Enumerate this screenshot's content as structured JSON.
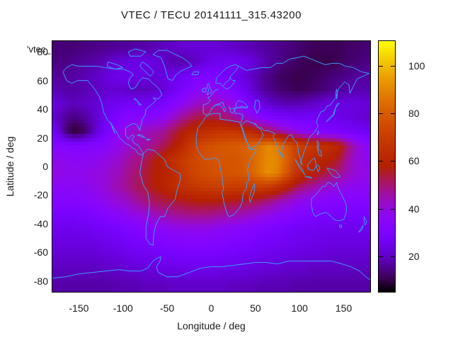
{
  "title": "VTEC / TECU 20141111_315.43200",
  "key_label": "'vtec_",
  "axes": {
    "x_label": "Longitude / deg",
    "y_label": "Latitude / deg",
    "x_ticks": [
      -150,
      -100,
      -50,
      0,
      50,
      100,
      150
    ],
    "y_ticks": [
      80,
      60,
      40,
      20,
      0,
      -20,
      -40,
      -60,
      -80
    ]
  },
  "colorbar": {
    "ticks": [
      20,
      40,
      60,
      80,
      100
    ],
    "min": 5,
    "max": 110.5,
    "palette": "gnuplot traditional pm3d (rgbformulae 7,5,15: black-violet-red-yellow)"
  },
  "colors": {
    "background": "#ffffff",
    "text": "#1a1a1a",
    "coastline": "#3c9eff",
    "border": "#000000"
  },
  "chart_data": {
    "type": "heatmap",
    "title": "VTEC / TECU 20141111_315.43200",
    "xlabel": "Longitude / deg",
    "ylabel": "Latitude / deg",
    "value_units": "TECU",
    "xlim": [
      -180,
      180
    ],
    "ylim": [
      -87.5,
      87.5
    ],
    "colorbar_range": [
      5,
      110.5
    ],
    "colorbar_ticks": [
      20,
      40,
      60,
      80,
      100
    ],
    "overlay": "world-coastlines",
    "coastline_color": "#3c9eff",
    "grid_on": false,
    "lon_centers": [
      -175,
      -165,
      -155,
      -145,
      -135,
      -125,
      -115,
      -105,
      -95,
      -85,
      -75,
      -65,
      -55,
      -45,
      -35,
      -25,
      -15,
      -5,
      5,
      15,
      25,
      35,
      45,
      55,
      65,
      75,
      85,
      95,
      105,
      115,
      125,
      135,
      145,
      155,
      165,
      175
    ],
    "lat_centers": [
      85,
      75,
      65,
      55,
      45,
      35,
      25,
      15,
      5,
      -5,
      -15,
      -25,
      -35,
      -45,
      -55,
      -65,
      -75,
      -85
    ],
    "values": [
      [
        13,
        13,
        13,
        14,
        14,
        15,
        15,
        16,
        16,
        17,
        17,
        18,
        19,
        20,
        21,
        22,
        22,
        22,
        22,
        21,
        20,
        19,
        18,
        17,
        16,
        15,
        14,
        13,
        12,
        11,
        11,
        11,
        11,
        12,
        12,
        13
      ],
      [
        14,
        14,
        15,
        16,
        17,
        18,
        20,
        22,
        23,
        24,
        24,
        23,
        21,
        18,
        17,
        18,
        20,
        23,
        25,
        26,
        26,
        25,
        23,
        20,
        17,
        15,
        13,
        12,
        11,
        10,
        10,
        10,
        11,
        12,
        13,
        14
      ],
      [
        16,
        16,
        17,
        18,
        19,
        21,
        23,
        25,
        25,
        24,
        23,
        22,
        23,
        24,
        26,
        28,
        30,
        31,
        30,
        28,
        26,
        23,
        20,
        17,
        14,
        12,
        11,
        10,
        10,
        11,
        12,
        13,
        14,
        15,
        16,
        16
      ],
      [
        18,
        17,
        17,
        18,
        19,
        20,
        21,
        21,
        20,
        19,
        19,
        20,
        22,
        25,
        29,
        33,
        36,
        37,
        36,
        34,
        31,
        27,
        22,
        18,
        15,
        13,
        12,
        11,
        11,
        12,
        13,
        15,
        16,
        17,
        18,
        18
      ],
      [
        22,
        20,
        19,
        20,
        21,
        23,
        25,
        26,
        27,
        27,
        26,
        27,
        29,
        32,
        36,
        40,
        43,
        44,
        44,
        42,
        39,
        34,
        29,
        25,
        21,
        19,
        18,
        18,
        19,
        20,
        22,
        23,
        23,
        23,
        23,
        22
      ],
      [
        20,
        16,
        14,
        16,
        19,
        23,
        27,
        31,
        33,
        34,
        34,
        35,
        37,
        41,
        46,
        50,
        53,
        54,
        53,
        51,
        47,
        43,
        38,
        34,
        31,
        29,
        28,
        27,
        27,
        27,
        26,
        25,
        24,
        23,
        22,
        21
      ],
      [
        25,
        13,
        8,
        11,
        17,
        25,
        31,
        37,
        41,
        43,
        44,
        45,
        47,
        51,
        56,
        60,
        62,
        64,
        66,
        67,
        67,
        65,
        61,
        57,
        52,
        47,
        43,
        39,
        36,
        33,
        31,
        30,
        29,
        28,
        27,
        26
      ],
      [
        34,
        33,
        32,
        32,
        33,
        34,
        36,
        38,
        42,
        44,
        46,
        48,
        52,
        56,
        61,
        68,
        73,
        76,
        78,
        79,
        80,
        81,
        83,
        86,
        91,
        88,
        79,
        73,
        70,
        68,
        66,
        64,
        60,
        50,
        42,
        36
      ],
      [
        38,
        37,
        36,
        36,
        37,
        38,
        40,
        42,
        46,
        48,
        52,
        56,
        60,
        64,
        68,
        72,
        75,
        77,
        78,
        78,
        78,
        79,
        82,
        87,
        91,
        90,
        82,
        71,
        66,
        63,
        60,
        58,
        54,
        46,
        40,
        38
      ],
      [
        39,
        38,
        38,
        38,
        39,
        40,
        42,
        44,
        48,
        50,
        54,
        57,
        59,
        62,
        67,
        71,
        74,
        76,
        77,
        77,
        78,
        79,
        82,
        87,
        92,
        89,
        79,
        68,
        62,
        58,
        55,
        52,
        48,
        44,
        40,
        39
      ],
      [
        36,
        36,
        36,
        37,
        38,
        40,
        42,
        45,
        48,
        51,
        54,
        57,
        60,
        63,
        65,
        67,
        69,
        70,
        71,
        71,
        70,
        70,
        70,
        71,
        69,
        65,
        59,
        53,
        49,
        46,
        43,
        41,
        39,
        38,
        37,
        36
      ],
      [
        33,
        33,
        33,
        34,
        35,
        37,
        39,
        41,
        43,
        46,
        49,
        51,
        53,
        54,
        55,
        56,
        57,
        57,
        57,
        56,
        55,
        54,
        53,
        51,
        48,
        45,
        42,
        39,
        37,
        35,
        34,
        33,
        33,
        33,
        33,
        33
      ],
      [
        28,
        28,
        28,
        29,
        30,
        31,
        33,
        35,
        37,
        39,
        41,
        43,
        45,
        46,
        47,
        48,
        48,
        48,
        47,
        46,
        45,
        44,
        42,
        40,
        38,
        36,
        34,
        32,
        31,
        30,
        29,
        29,
        28,
        28,
        28,
        28
      ],
      [
        25,
        25,
        25,
        25,
        26,
        27,
        28,
        29,
        31,
        32,
        34,
        35,
        36,
        37,
        38,
        38,
        38,
        38,
        37,
        36,
        35,
        34,
        33,
        31,
        30,
        29,
        28,
        27,
        26,
        26,
        25,
        25,
        25,
        25,
        25,
        25
      ],
      [
        23,
        23,
        23,
        23,
        23,
        24,
        25,
        26,
        27,
        28,
        29,
        30,
        31,
        32,
        32,
        33,
        33,
        33,
        32,
        32,
        31,
        30,
        29,
        28,
        27,
        27,
        26,
        25,
        25,
        24,
        24,
        23,
        23,
        23,
        23,
        23
      ],
      [
        21,
        21,
        21,
        21,
        21,
        22,
        22,
        23,
        24,
        25,
        25,
        26,
        27,
        27,
        28,
        28,
        28,
        28,
        28,
        27,
        27,
        26,
        26,
        25,
        24,
        24,
        23,
        23,
        22,
        22,
        22,
        21,
        21,
        21,
        21,
        21
      ],
      [
        19,
        19,
        19,
        19,
        19,
        19,
        20,
        20,
        21,
        21,
        22,
        22,
        23,
        23,
        23,
        24,
        24,
        24,
        24,
        23,
        23,
        23,
        22,
        22,
        21,
        21,
        20,
        20,
        20,
        19,
        19,
        19,
        19,
        19,
        19,
        19
      ],
      [
        17,
        17,
        17,
        17,
        17,
        17,
        17,
        18,
        18,
        18,
        19,
        19,
        19,
        20,
        20,
        20,
        20,
        20,
        20,
        20,
        19,
        19,
        19,
        18,
        18,
        18,
        18,
        17,
        17,
        17,
        17,
        17,
        17,
        17,
        17,
        17
      ]
    ]
  }
}
